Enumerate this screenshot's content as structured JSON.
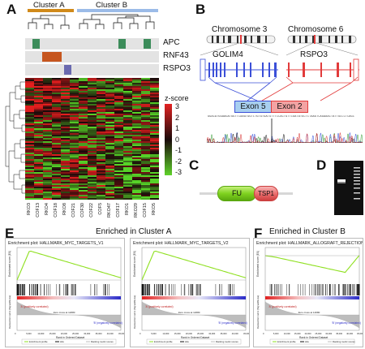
{
  "panels": {
    "A": "A",
    "B": "B",
    "C": "C",
    "D": "D",
    "E": "E",
    "F": "F"
  },
  "panel_a": {
    "clusters": [
      {
        "label": "Cluster A",
        "color": "#d08a1a"
      },
      {
        "label": "Cluster B",
        "color": "#9bbbe8"
      }
    ],
    "genes": [
      {
        "label": "APC",
        "color": "#3c8c5a"
      },
      {
        "label": "RNF43",
        "color": "#c6561f"
      },
      {
        "label": "RSPO3",
        "color": "#6a6ab0"
      }
    ],
    "legend": {
      "title": "z-score",
      "ticks": [
        "3",
        "2",
        "1",
        "0",
        "-1",
        "-2",
        "-3"
      ]
    },
    "samples": [
      "RKO3",
      "COF13",
      "RKO4",
      "COF18",
      "RKO8",
      "COF21",
      "COF30",
      "COF22",
      "COF5",
      "RKO47",
      "COF17",
      "RKO1",
      "RKO29",
      "COF15",
      "RKO5"
    ]
  },
  "panel_b": {
    "chromosomes": [
      "Chromosome 3",
      "Chromosome 6"
    ],
    "genes": [
      "GOLIM4",
      "RSPO3"
    ],
    "exons": [
      "Exon 5",
      "Exon 2"
    ],
    "sequence": "GGACATGGAAGATGGTTCAAGTGGTCTGTGTGATGTTTCCACTGTTCGATATGCTCTAAGTCAGAAACTATTGCCCTCAGC"
  },
  "panel_c": {
    "domains": [
      "FU",
      "TSP1"
    ]
  },
  "panel_e": {
    "heading": "Enriched in Cluster A",
    "plots": [
      {
        "title": "Enrichment plot: HALLMARK_MYC_TARGETS_V1"
      },
      {
        "title": "Enrichment plot: HALLMARK_MYC_TARGETS_V2"
      }
    ]
  },
  "panel_f": {
    "heading": "Enriched in Cluster B",
    "plots": [
      {
        "title": "Enrichment plot: HALLMARK_ALLOGRAFT_REJECTION"
      }
    ]
  },
  "gsea_common": {
    "ylabel_es": "Enrichment score (ES)",
    "ylabel_rank": "Ranked list metric (Signal2Noise)",
    "xlabel": "Rank in Ordered Dataset",
    "pos_label": "'A' (positively correlated)",
    "neg_label": "'B' (negatively correlated)",
    "zero_label": "Zero cross at 12680",
    "legend": [
      "Enrichment profile",
      "Hits",
      "Ranking metric scores"
    ],
    "xticks": [
      "0",
      "5,000",
      "10,000",
      "15,000",
      "20,000",
      "25,000",
      "30,000",
      "35,000",
      "40,000",
      "45,000"
    ]
  },
  "colors": {
    "green": "#8fe020",
    "heat_red": "#e32222",
    "heat_green": "#5fd22a",
    "rspo_red": "#e23b3b",
    "golim_blue": "#3b4fd8"
  }
}
